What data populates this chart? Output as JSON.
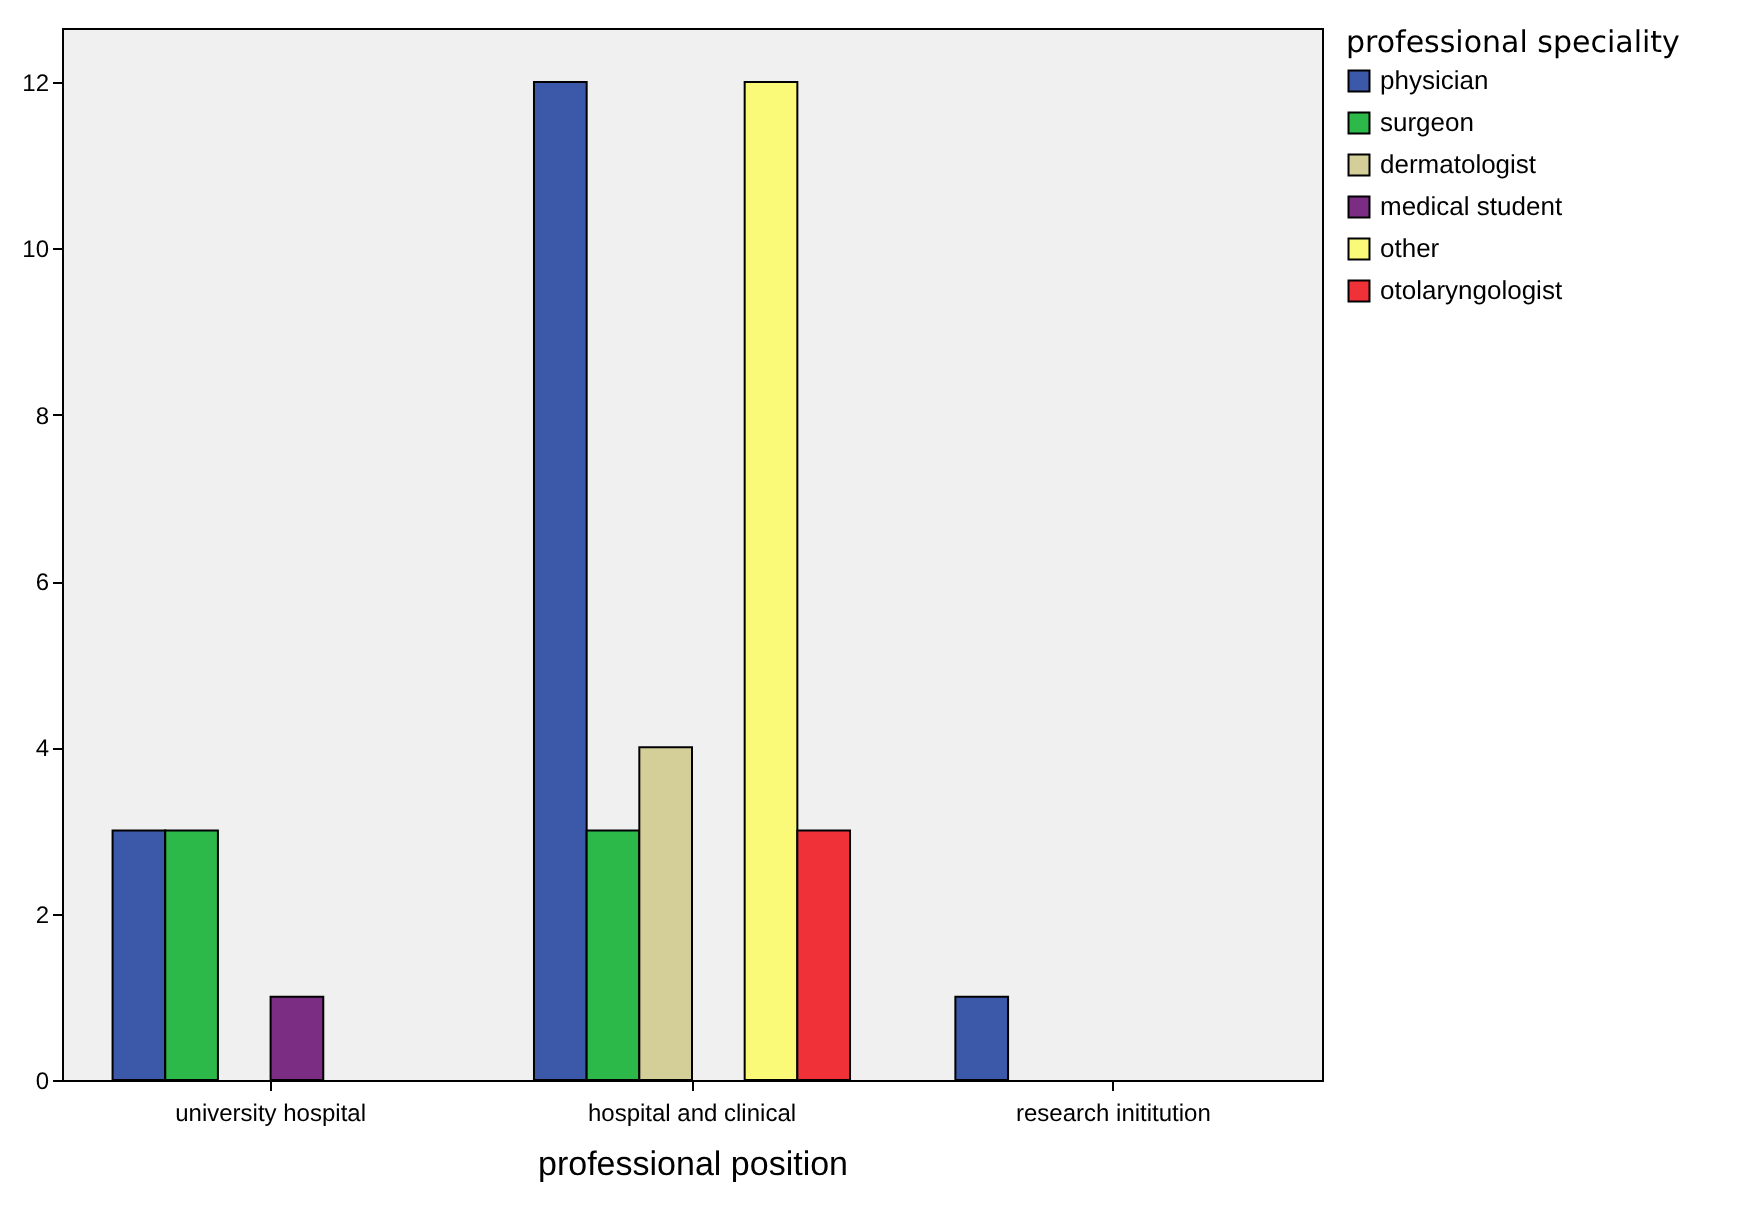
{
  "chart_data": {
    "type": "bar",
    "xlabel": "professional position",
    "legend_title": "professional speciality",
    "categories": [
      "university hospital",
      "hospital and clinical",
      "research inititution"
    ],
    "series": [
      {
        "name": "physician",
        "color": "#3c58a8",
        "values": [
          3,
          12,
          1
        ]
      },
      {
        "name": "surgeon",
        "color": "#2db84a",
        "values": [
          3,
          3,
          null
        ]
      },
      {
        "name": "dermatologist",
        "color": "#d4cf98",
        "values": [
          null,
          4,
          null
        ]
      },
      {
        "name": "medical student",
        "color": "#7b2c83",
        "values": [
          1,
          null,
          null
        ]
      },
      {
        "name": "other",
        "color": "#fafa78",
        "values": [
          null,
          12,
          null
        ]
      },
      {
        "name": "otolaryngologist",
        "color": "#f03238",
        "values": [
          null,
          3,
          null
        ]
      }
    ],
    "ylim": [
      0,
      12.65
    ],
    "yticks": [
      0,
      2,
      4,
      6,
      8,
      10,
      12
    ],
    "grid": false,
    "legend": "top right"
  }
}
